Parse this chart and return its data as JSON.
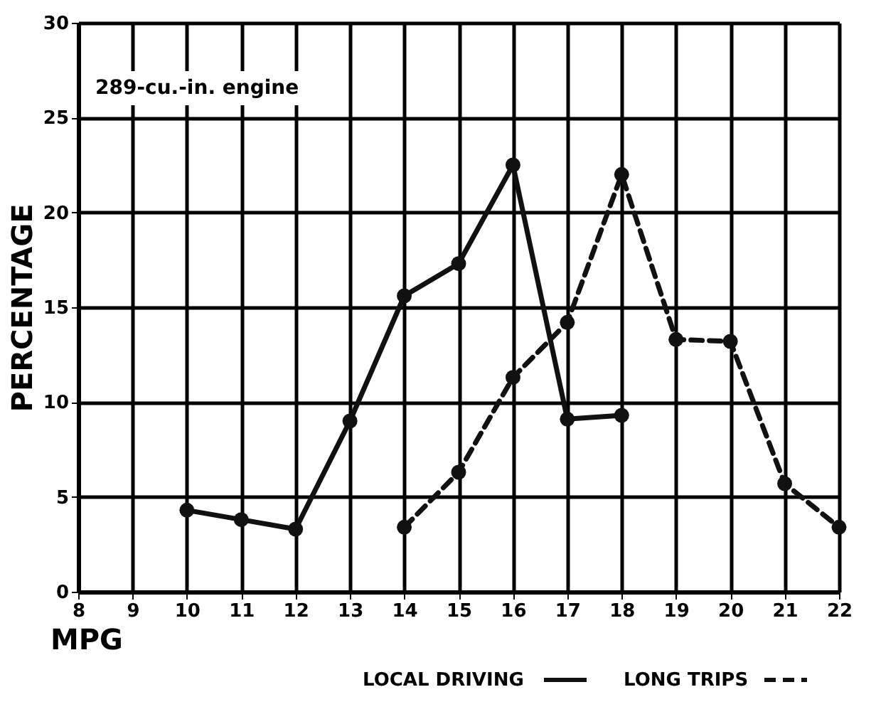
{
  "chart_data": {
    "type": "line",
    "xlabel": "MPG",
    "ylabel": "PERCENTAGE",
    "annotations": [
      "289-cu.-in. engine"
    ],
    "xlim": [
      8,
      22
    ],
    "xticks": [
      8,
      9,
      10,
      11,
      12,
      13,
      14,
      15,
      16,
      17,
      18,
      19,
      20,
      21,
      22
    ],
    "ylim": [
      0,
      30
    ],
    "yticks": [
      0,
      5,
      10,
      15,
      20,
      25,
      30
    ],
    "grid": true,
    "legend": "bottom",
    "marker": "circle",
    "series": [
      {
        "name": "LOCAL DRIVING",
        "color": "#111111",
        "line_style": "solid",
        "x": [
          10,
          11,
          12,
          13,
          14,
          15,
          16,
          17,
          18
        ],
        "values": [
          4.3,
          3.8,
          3.3,
          9.0,
          15.6,
          17.3,
          22.5,
          9.1,
          9.3
        ]
      },
      {
        "name": "LONG TRIPS",
        "color": "#111111",
        "line_style": "dashed",
        "x": [
          14,
          15,
          16,
          17,
          18,
          19,
          20,
          21,
          22
        ],
        "values": [
          3.4,
          6.3,
          11.3,
          14.2,
          22.0,
          13.3,
          13.2,
          5.7,
          3.4
        ]
      }
    ]
  }
}
